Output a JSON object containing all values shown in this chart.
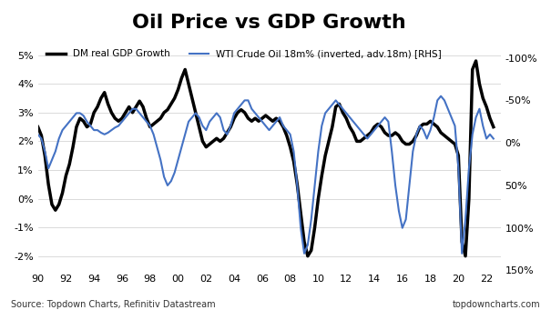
{
  "title": "Oil Price vs GDP Growth",
  "title_fontsize": 16,
  "title_fontweight": "bold",
  "legend_labels": [
    "DM real GDP Growth",
    "WTI Crude Oil 18m% (inverted, adv.18m) [RHS]"
  ],
  "gdp_color": "#000000",
  "oil_color": "#4472C4",
  "gdp_linewidth": 2.5,
  "oil_linewidth": 1.5,
  "xlim": [
    1990,
    2023
  ],
  "ylim_left": [
    -2.5,
    5.5
  ],
  "ylim_right": [
    150,
    -120
  ],
  "yticks_left": [
    -2,
    -1,
    0,
    1,
    2,
    3,
    4,
    5
  ],
  "ytick_labels_left": [
    "-2%",
    "-1%",
    "0%",
    "1%",
    "2%",
    "3%",
    "4%",
    "5%"
  ],
  "yticks_right": [
    150,
    100,
    50,
    0,
    -50,
    -100
  ],
  "ytick_labels_right": [
    "150%",
    "100%",
    "50%",
    "0%",
    "-50%",
    "-100%"
  ],
  "xtick_labels": [
    "90",
    "92",
    "94",
    "96",
    "98",
    "00",
    "02",
    "04",
    "06",
    "08",
    "10",
    "12",
    "14",
    "16",
    "18",
    "20",
    "22"
  ],
  "source_text": "Source: Topdown Charts, Refinitiv Datastream",
  "website_text": "topdowncharts.com",
  "background_color": "#ffffff",
  "gdp_data": {
    "x": [
      1990.0,
      1990.25,
      1990.5,
      1990.75,
      1991.0,
      1991.25,
      1991.5,
      1991.75,
      1992.0,
      1992.25,
      1992.5,
      1992.75,
      1993.0,
      1993.25,
      1993.5,
      1993.75,
      1994.0,
      1994.25,
      1994.5,
      1994.75,
      1995.0,
      1995.25,
      1995.5,
      1995.75,
      1996.0,
      1996.25,
      1996.5,
      1996.75,
      1997.0,
      1997.25,
      1997.5,
      1997.75,
      1998.0,
      1998.25,
      1998.5,
      1998.75,
      1999.0,
      1999.25,
      1999.5,
      1999.75,
      2000.0,
      2000.25,
      2000.5,
      2000.75,
      2001.0,
      2001.25,
      2001.5,
      2001.75,
      2002.0,
      2002.25,
      2002.5,
      2002.75,
      2003.0,
      2003.25,
      2003.5,
      2003.75,
      2004.0,
      2004.25,
      2004.5,
      2004.75,
      2005.0,
      2005.25,
      2005.5,
      2005.75,
      2006.0,
      2006.25,
      2006.5,
      2006.75,
      2007.0,
      2007.25,
      2007.5,
      2007.75,
      2008.0,
      2008.25,
      2008.5,
      2008.75,
      2009.0,
      2009.25,
      2009.5,
      2009.75,
      2010.0,
      2010.25,
      2010.5,
      2010.75,
      2011.0,
      2011.25,
      2011.5,
      2011.75,
      2012.0,
      2012.25,
      2012.5,
      2012.75,
      2013.0,
      2013.25,
      2013.5,
      2013.75,
      2014.0,
      2014.25,
      2014.5,
      2014.75,
      2015.0,
      2015.25,
      2015.5,
      2015.75,
      2016.0,
      2016.25,
      2016.5,
      2016.75,
      2017.0,
      2017.25,
      2017.5,
      2017.75,
      2018.0,
      2018.25,
      2018.5,
      2018.75,
      2019.0,
      2019.25,
      2019.5,
      2019.75,
      2020.0,
      2020.25,
      2020.5,
      2020.75,
      2021.0,
      2021.25,
      2021.5,
      2021.75,
      2022.0,
      2022.25,
      2022.5
    ],
    "y": [
      2.5,
      2.2,
      1.5,
      0.5,
      -0.2,
      -0.4,
      -0.2,
      0.2,
      0.8,
      1.2,
      1.8,
      2.5,
      2.8,
      2.7,
      2.5,
      2.6,
      3.0,
      3.2,
      3.5,
      3.7,
      3.3,
      3.0,
      2.8,
      2.7,
      2.8,
      3.0,
      3.2,
      3.0,
      3.2,
      3.4,
      3.2,
      2.8,
      2.5,
      2.6,
      2.7,
      2.8,
      3.0,
      3.1,
      3.3,
      3.5,
      3.8,
      4.2,
      4.5,
      4.0,
      3.5,
      3.0,
      2.5,
      2.0,
      1.8,
      1.9,
      2.0,
      2.1,
      2.0,
      2.1,
      2.3,
      2.5,
      2.8,
      3.0,
      3.1,
      3.0,
      2.8,
      2.7,
      2.8,
      2.7,
      2.8,
      2.9,
      2.8,
      2.7,
      2.8,
      2.7,
      2.5,
      2.2,
      1.8,
      1.3,
      0.5,
      -0.5,
      -1.5,
      -2.0,
      -1.8,
      -1.0,
      0.0,
      0.8,
      1.5,
      2.0,
      2.5,
      3.2,
      3.3,
      3.0,
      2.8,
      2.5,
      2.3,
      2.0,
      2.0,
      2.1,
      2.2,
      2.3,
      2.5,
      2.6,
      2.5,
      2.3,
      2.2,
      2.2,
      2.3,
      2.2,
      2.0,
      1.9,
      1.9,
      2.0,
      2.2,
      2.5,
      2.6,
      2.6,
      2.7,
      2.6,
      2.5,
      2.3,
      2.2,
      2.1,
      2.0,
      1.9,
      1.5,
      -1.5,
      -2.0,
      0.0,
      4.5,
      4.8,
      4.0,
      3.5,
      3.2,
      2.8,
      2.5
    ]
  },
  "oil_data": {
    "x": [
      1990.0,
      1990.25,
      1990.5,
      1990.75,
      1991.0,
      1991.25,
      1991.5,
      1991.75,
      1992.0,
      1992.25,
      1992.5,
      1992.75,
      1993.0,
      1993.25,
      1993.5,
      1993.75,
      1994.0,
      1994.25,
      1994.5,
      1994.75,
      1995.0,
      1995.25,
      1995.5,
      1995.75,
      1996.0,
      1996.25,
      1996.5,
      1996.75,
      1997.0,
      1997.25,
      1997.5,
      1997.75,
      1998.0,
      1998.25,
      1998.5,
      1998.75,
      1999.0,
      1999.25,
      1999.5,
      1999.75,
      2000.0,
      2000.25,
      2000.5,
      2000.75,
      2001.0,
      2001.25,
      2001.5,
      2001.75,
      2002.0,
      2002.25,
      2002.5,
      2002.75,
      2003.0,
      2003.25,
      2003.5,
      2003.75,
      2004.0,
      2004.25,
      2004.5,
      2004.75,
      2005.0,
      2005.25,
      2005.5,
      2005.75,
      2006.0,
      2006.25,
      2006.5,
      2006.75,
      2007.0,
      2007.25,
      2007.5,
      2007.75,
      2008.0,
      2008.25,
      2008.5,
      2008.75,
      2009.0,
      2009.25,
      2009.5,
      2009.75,
      2010.0,
      2010.25,
      2010.5,
      2010.75,
      2011.0,
      2011.25,
      2011.5,
      2011.75,
      2012.0,
      2012.25,
      2012.5,
      2012.75,
      2013.0,
      2013.25,
      2013.5,
      2013.75,
      2014.0,
      2014.25,
      2014.5,
      2014.75,
      2015.0,
      2015.25,
      2015.5,
      2015.75,
      2016.0,
      2016.25,
      2016.5,
      2016.75,
      2017.0,
      2017.25,
      2017.5,
      2017.75,
      2018.0,
      2018.25,
      2018.5,
      2018.75,
      2019.0,
      2019.25,
      2019.5,
      2019.75,
      2020.0,
      2020.25,
      2020.5,
      2020.75,
      2021.0,
      2021.25,
      2021.5,
      2021.75,
      2022.0,
      2022.25,
      2022.5
    ],
    "y": [
      -10,
      -5,
      10,
      30,
      20,
      10,
      -5,
      -15,
      -20,
      -25,
      -30,
      -35,
      -35,
      -32,
      -25,
      -20,
      -15,
      -15,
      -12,
      -10,
      -12,
      -15,
      -18,
      -20,
      -25,
      -30,
      -35,
      -40,
      -40,
      -35,
      -30,
      -25,
      -20,
      -10,
      5,
      20,
      40,
      50,
      45,
      35,
      20,
      5,
      -10,
      -25,
      -30,
      -35,
      -30,
      -20,
      -15,
      -25,
      -30,
      -35,
      -30,
      -15,
      -10,
      -20,
      -35,
      -40,
      -45,
      -50,
      -50,
      -40,
      -35,
      -30,
      -25,
      -20,
      -15,
      -20,
      -25,
      -30,
      -20,
      -15,
      -10,
      10,
      50,
      100,
      130,
      120,
      90,
      50,
      10,
      -20,
      -35,
      -40,
      -45,
      -50,
      -45,
      -40,
      -35,
      -30,
      -25,
      -20,
      -15,
      -10,
      -5,
      -10,
      -15,
      -20,
      -25,
      -30,
      -25,
      10,
      50,
      80,
      100,
      90,
      50,
      10,
      -10,
      -20,
      -15,
      -5,
      -15,
      -30,
      -50,
      -55,
      -50,
      -40,
      -30,
      -20,
      30,
      130,
      90,
      30,
      -10,
      -30,
      -40,
      -20,
      -5,
      -10,
      -5
    ]
  }
}
